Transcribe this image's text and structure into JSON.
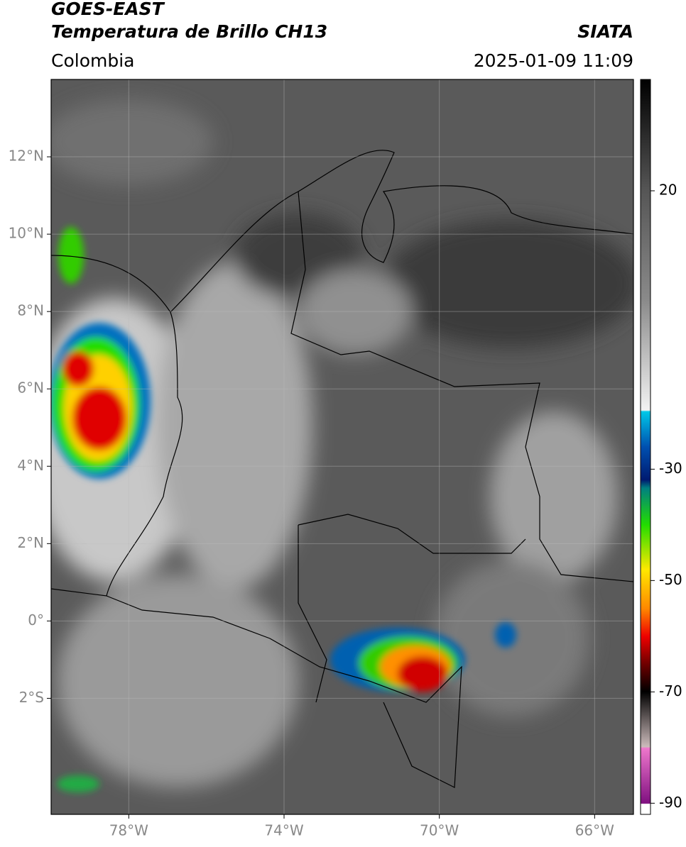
{
  "header": {
    "title": "GOES-EAST",
    "subtitle": "Temperatura de Brillo CH13",
    "agency": "SIATA",
    "region": "Colombia",
    "datetime": "2025-01-09 11:09"
  },
  "map": {
    "xlim": [
      -80,
      -65
    ],
    "ylim": [
      -5,
      14
    ],
    "grid": true,
    "xticks": [
      {
        "value": -78,
        "label": "78°W"
      },
      {
        "value": -74,
        "label": "74°W"
      },
      {
        "value": -70,
        "label": "70°W"
      },
      {
        "value": -66,
        "label": "66°W"
      }
    ],
    "yticks": [
      {
        "value": 12,
        "label": "12°N"
      },
      {
        "value": 10,
        "label": "10°N"
      },
      {
        "value": 8,
        "label": "8°N"
      },
      {
        "value": 6,
        "label": "6°N"
      },
      {
        "value": 4,
        "label": "4°N"
      },
      {
        "value": 2,
        "label": "2°N"
      },
      {
        "value": 0,
        "label": "0°"
      },
      {
        "value": -2,
        "label": "2°S"
      }
    ]
  },
  "colorbar": {
    "clim": [
      -92,
      40
    ],
    "ticks": [
      20,
      -30,
      -50,
      -70,
      -90
    ]
  }
}
